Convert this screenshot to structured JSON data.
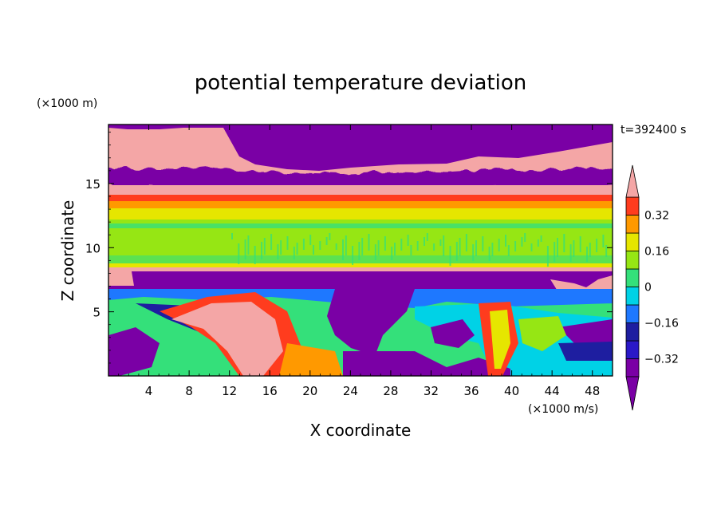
{
  "chart_data": {
    "type": "heatmap",
    "title": "potential temperature deviation",
    "xlabel": "X coordinate",
    "ylabel": "Z coordinate",
    "x_unit": "(×1000 m/s)",
    "y_unit": "(×1000 m)",
    "time_label": "t=392400 s",
    "xlim": [
      0,
      50
    ],
    "ylim": [
      0,
      19.6
    ],
    "x_ticks": [
      "4",
      "8",
      "12",
      "16",
      "20",
      "24",
      "28",
      "32",
      "36",
      "40",
      "44",
      "48"
    ],
    "x_tick_values": [
      4,
      8,
      12,
      16,
      20,
      24,
      28,
      32,
      36,
      40,
      44,
      48
    ],
    "y_ticks": [
      "5",
      "10",
      "15"
    ],
    "y_tick_values": [
      5,
      10,
      15
    ],
    "colorbar": {
      "levels": [
        -0.4,
        -0.32,
        -0.24,
        -0.16,
        -0.08,
        0,
        0.08,
        0.16,
        0.24,
        0.32,
        0.4
      ],
      "labels": [
        "0.32",
        "0.16",
        "0",
        "−0.16",
        "−0.32"
      ],
      "label_values": [
        0.32,
        0.16,
        0,
        -0.16,
        -0.32
      ],
      "colors": [
        "#7a00a5",
        "#2a18c8",
        "#1e1ea0",
        "#1e78ff",
        "#00d2e6",
        "#34e07a",
        "#96e614",
        "#e6e600",
        "#ff9900",
        "#ff3c1e",
        "#f4a6a6"
      ],
      "extend": "both"
    },
    "bands": [
      {
        "z": [
          0,
          6.5
        ],
        "value": "mixed",
        "note": ""
      },
      {
        "z": [
          6.5,
          8.0
        ],
        "value": -0.4
      },
      {
        "z": [
          8.0,
          8.8
        ],
        "value": 0.4
      },
      {
        "z": [
          8.8,
          12.3
        ],
        "value": 0.08
      },
      {
        "z": [
          12.3,
          13.0
        ],
        "value": 0.16
      },
      {
        "z": [
          13.0,
          13.7
        ],
        "value": 0.24
      },
      {
        "z": [
          13.7,
          14.2
        ],
        "value": 0.32
      },
      {
        "z": [
          14.2,
          16.5
        ],
        "value": 0.4
      },
      {
        "z": [
          16.5,
          19.6
        ],
        "value": -0.4
      }
    ]
  }
}
